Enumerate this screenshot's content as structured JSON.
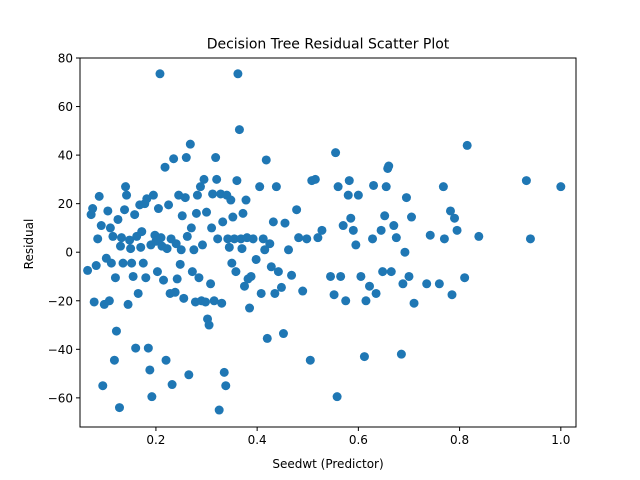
{
  "chart_data": {
    "type": "scatter",
    "title": "Decision Tree Residual Scatter Plot",
    "xlabel": "Seedwt (Predictor)",
    "ylabel": "Residual",
    "xlim": [
      0.05,
      1.03
    ],
    "ylim": [
      -72,
      80
    ],
    "grid": false,
    "legend": "none",
    "color": "#1f77b4",
    "xticks": [
      0.2,
      0.4,
      0.6,
      0.8,
      1.0
    ],
    "xtick_labels": [
      "0.2",
      "0.4",
      "0.6",
      "0.8",
      "1.0"
    ],
    "yticks": [
      -60,
      -40,
      -20,
      0,
      20,
      40,
      60,
      80
    ],
    "ytick_labels": [
      "−60",
      "−40",
      "−20",
      "0",
      "20",
      "40",
      "60",
      "80"
    ],
    "points": [
      [
        0.065,
        -7.5
      ],
      [
        0.072,
        15.5
      ],
      [
        0.075,
        18
      ],
      [
        0.078,
        -20.5
      ],
      [
        0.082,
        -5.5
      ],
      [
        0.085,
        5.5
      ],
      [
        0.088,
        23
      ],
      [
        0.092,
        11
      ],
      [
        0.095,
        -55
      ],
      [
        0.098,
        -21.5
      ],
      [
        0.102,
        -2.5
      ],
      [
        0.105,
        17
      ],
      [
        0.108,
        -20
      ],
      [
        0.11,
        10
      ],
      [
        0.112,
        -4.5
      ],
      [
        0.115,
        6.5
      ],
      [
        0.118,
        -44.5
      ],
      [
        0.12,
        -10.5
      ],
      [
        0.122,
        -32.5
      ],
      [
        0.125,
        13.5
      ],
      [
        0.128,
        -64
      ],
      [
        0.13,
        2.5
      ],
      [
        0.132,
        6
      ],
      [
        0.135,
        -4.5
      ],
      [
        0.138,
        17.5
      ],
      [
        0.14,
        27
      ],
      [
        0.142,
        23.5
      ],
      [
        0.145,
        -21.5
      ],
      [
        0.148,
        5
      ],
      [
        0.15,
        1.5
      ],
      [
        0.152,
        -4.5
      ],
      [
        0.155,
        -10
      ],
      [
        0.158,
        15.5
      ],
      [
        0.16,
        -39.5
      ],
      [
        0.162,
        6.5
      ],
      [
        0.165,
        -17
      ],
      [
        0.168,
        19.5
      ],
      [
        0.17,
        2
      ],
      [
        0.172,
        8.5
      ],
      [
        0.175,
        -4.5
      ],
      [
        0.178,
        20
      ],
      [
        0.18,
        -10.5
      ],
      [
        0.182,
        22
      ],
      [
        0.185,
        -39.5
      ],
      [
        0.188,
        -48.5
      ],
      [
        0.19,
        3
      ],
      [
        0.192,
        -59.5
      ],
      [
        0.195,
        23.5
      ],
      [
        0.198,
        7
      ],
      [
        0.2,
        4.5
      ],
      [
        0.203,
        -8
      ],
      [
        0.205,
        18
      ],
      [
        0.208,
        73.5
      ],
      [
        0.21,
        6
      ],
      [
        0.212,
        2.5
      ],
      [
        0.215,
        -11.5
      ],
      [
        0.218,
        35
      ],
      [
        0.22,
        -44.5
      ],
      [
        0.222,
        1.5
      ],
      [
        0.225,
        19.5
      ],
      [
        0.228,
        -17
      ],
      [
        0.23,
        5.5
      ],
      [
        0.232,
        -54.5
      ],
      [
        0.235,
        38.5
      ],
      [
        0.238,
        -16.5
      ],
      [
        0.24,
        3.5
      ],
      [
        0.242,
        -11
      ],
      [
        0.245,
        23.5
      ],
      [
        0.248,
        -5
      ],
      [
        0.25,
        1
      ],
      [
        0.252,
        15
      ],
      [
        0.255,
        -19
      ],
      [
        0.258,
        22.5
      ],
      [
        0.26,
        39
      ],
      [
        0.262,
        6.5
      ],
      [
        0.265,
        -50.5
      ],
      [
        0.268,
        44.5
      ],
      [
        0.27,
        10
      ],
      [
        0.272,
        -8
      ],
      [
        0.275,
        1
      ],
      [
        0.278,
        -20.5
      ],
      [
        0.28,
        16
      ],
      [
        0.282,
        23.5
      ],
      [
        0.285,
        -10.5
      ],
      [
        0.288,
        27
      ],
      [
        0.29,
        -20
      ],
      [
        0.292,
        3
      ],
      [
        0.295,
        30
      ],
      [
        0.298,
        -20.5
      ],
      [
        0.3,
        16.5
      ],
      [
        0.302,
        -27.5
      ],
      [
        0.305,
        -30
      ],
      [
        0.308,
        -13
      ],
      [
        0.31,
        10
      ],
      [
        0.312,
        24
      ],
      [
        0.315,
        -20
      ],
      [
        0.318,
        39
      ],
      [
        0.32,
        30
      ],
      [
        0.322,
        5.5
      ],
      [
        0.325,
        -65
      ],
      [
        0.328,
        24
      ],
      [
        0.33,
        -21
      ],
      [
        0.332,
        12.5
      ],
      [
        0.335,
        -49.5
      ],
      [
        0.338,
        -55
      ],
      [
        0.34,
        23.5
      ],
      [
        0.342,
        5.5
      ],
      [
        0.345,
        2
      ],
      [
        0.348,
        21.5
      ],
      [
        0.35,
        -4.5
      ],
      [
        0.352,
        14.5
      ],
      [
        0.355,
        5.5
      ],
      [
        0.358,
        -8
      ],
      [
        0.36,
        29.5
      ],
      [
        0.362,
        73.5
      ],
      [
        0.365,
        50.5
      ],
      [
        0.368,
        5.5
      ],
      [
        0.37,
        1.5
      ],
      [
        0.372,
        16
      ],
      [
        0.375,
        -14
      ],
      [
        0.378,
        21.5
      ],
      [
        0.38,
        6
      ],
      [
        0.382,
        -11
      ],
      [
        0.385,
        -23
      ],
      [
        0.388,
        -10
      ],
      [
        0.392,
        5.5
      ],
      [
        0.398,
        -3
      ],
      [
        0.405,
        27
      ],
      [
        0.408,
        -17
      ],
      [
        0.412,
        5.5
      ],
      [
        0.415,
        1
      ],
      [
        0.418,
        38
      ],
      [
        0.42,
        -35.5
      ],
      [
        0.425,
        3.5
      ],
      [
        0.428,
        -6
      ],
      [
        0.432,
        12.5
      ],
      [
        0.435,
        -17
      ],
      [
        0.438,
        27
      ],
      [
        0.442,
        -8
      ],
      [
        0.448,
        -14.5
      ],
      [
        0.452,
        -33.5
      ],
      [
        0.455,
        12
      ],
      [
        0.462,
        1
      ],
      [
        0.468,
        -9.5
      ],
      [
        0.478,
        17.5
      ],
      [
        0.482,
        6
      ],
      [
        0.49,
        -16
      ],
      [
        0.498,
        5.5
      ],
      [
        0.505,
        -44.5
      ],
      [
        0.508,
        29.5
      ],
      [
        0.515,
        30
      ],
      [
        0.52,
        6
      ],
      [
        0.528,
        9
      ],
      [
        0.545,
        -10
      ],
      [
        0.552,
        -17.5
      ],
      [
        0.555,
        41
      ],
      [
        0.558,
        -59.5
      ],
      [
        0.56,
        27
      ],
      [
        0.565,
        -10
      ],
      [
        0.57,
        11
      ],
      [
        0.575,
        -20
      ],
      [
        0.58,
        23.5
      ],
      [
        0.582,
        29.5
      ],
      [
        0.585,
        14
      ],
      [
        0.59,
        9
      ],
      [
        0.595,
        3
      ],
      [
        0.6,
        23.5
      ],
      [
        0.605,
        -10
      ],
      [
        0.612,
        -43
      ],
      [
        0.615,
        -20
      ],
      [
        0.622,
        -14
      ],
      [
        0.628,
        5.5
      ],
      [
        0.63,
        27.5
      ],
      [
        0.635,
        -17
      ],
      [
        0.645,
        9
      ],
      [
        0.648,
        -8
      ],
      [
        0.652,
        15
      ],
      [
        0.655,
        27
      ],
      [
        0.658,
        34.5
      ],
      [
        0.66,
        35.5
      ],
      [
        0.665,
        -8
      ],
      [
        0.67,
        11
      ],
      [
        0.675,
        6
      ],
      [
        0.685,
        -42
      ],
      [
        0.688,
        -13
      ],
      [
        0.692,
        0
      ],
      [
        0.695,
        22.5
      ],
      [
        0.7,
        -10
      ],
      [
        0.705,
        14.5
      ],
      [
        0.71,
        -21
      ],
      [
        0.735,
        -13
      ],
      [
        0.742,
        7
      ],
      [
        0.76,
        -13
      ],
      [
        0.768,
        27
      ],
      [
        0.77,
        5.5
      ],
      [
        0.782,
        17
      ],
      [
        0.785,
        -17.5
      ],
      [
        0.79,
        14
      ],
      [
        0.795,
        9
      ],
      [
        0.81,
        -10.5
      ],
      [
        0.815,
        44
      ],
      [
        0.838,
        6.5
      ],
      [
        0.932,
        29.5
      ],
      [
        0.94,
        5.5
      ],
      [
        1.0,
        27
      ]
    ]
  }
}
